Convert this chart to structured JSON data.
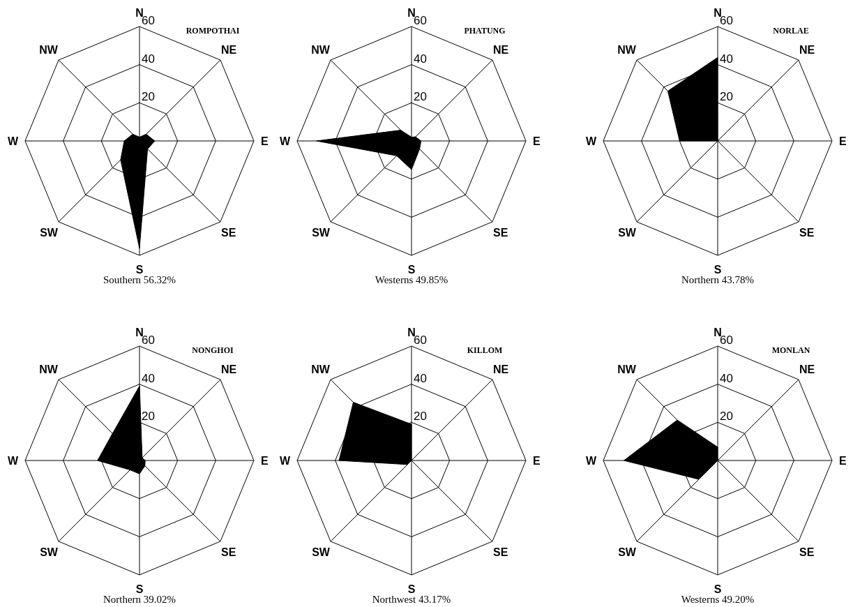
{
  "chart_data": [
    {
      "type": "radar",
      "title": "ROMPOTHAI",
      "xlabel": "Southern 56.32%",
      "categories": [
        "N",
        "NE",
        "E",
        "SE",
        "S",
        "SW",
        "W",
        "NW"
      ],
      "ylim": [
        0,
        60
      ],
      "yticks": [
        20,
        40,
        60
      ],
      "series": [
        {
          "color": "#000000",
          "values": [
            2,
            5,
            8,
            6,
            56.32,
            14,
            8,
            5
          ]
        }
      ]
    },
    {
      "type": "radar",
      "title": "PHATUNG",
      "xlabel": "Westerns 49.85%",
      "categories": [
        "N",
        "NE",
        "E",
        "SE",
        "S",
        "SW",
        "W",
        "NW"
      ],
      "ylim": [
        0,
        60
      ],
      "yticks": [
        20,
        40,
        60
      ],
      "series": [
        {
          "color": "#000000",
          "values": [
            2,
            3,
            5,
            6,
            15,
            11,
            49.85,
            8
          ]
        }
      ]
    },
    {
      "type": "radar",
      "title": "NORLAE",
      "xlabel": "Northern 43.78%",
      "categories": [
        "N",
        "NE",
        "E",
        "SE",
        "S",
        "SW",
        "W",
        "NW"
      ],
      "ylim": [
        0,
        60
      ],
      "yticks": [
        20,
        40,
        60
      ],
      "series": [
        {
          "color": "#000000",
          "values": [
            43.78,
            0,
            0,
            0,
            0,
            0,
            20,
            37
          ]
        }
      ]
    },
    {
      "type": "radar",
      "title": "NONGHOI",
      "xlabel": "Northern 39.02%",
      "categories": [
        "N",
        "NE",
        "E",
        "SE",
        "S",
        "SW",
        "W",
        "NW"
      ],
      "ylim": [
        0,
        60
      ],
      "yticks": [
        20,
        40,
        60
      ],
      "series": [
        {
          "color": "#000000",
          "values": [
            39.02,
            2,
            3,
            4,
            7,
            7,
            22,
            20
          ]
        }
      ]
    },
    {
      "type": "radar",
      "title": "KILLOM",
      "xlabel": "Northwest 43.17%",
      "categories": [
        "N",
        "NE",
        "E",
        "SE",
        "S",
        "SW",
        "W",
        "NW"
      ],
      "ylim": [
        0,
        60
      ],
      "yticks": [
        20,
        40,
        60
      ],
      "series": [
        {
          "color": "#000000",
          "values": [
            19,
            0,
            0,
            0,
            0,
            3,
            38,
            43.17
          ]
        }
      ]
    },
    {
      "type": "radar",
      "title": "MONLAN",
      "xlabel": "Westerns 49.20%",
      "categories": [
        "N",
        "NE",
        "E",
        "SE",
        "S",
        "SW",
        "W",
        "NW"
      ],
      "ylim": [
        0,
        60
      ],
      "yticks": [
        20,
        40,
        60
      ],
      "series": [
        {
          "color": "#000000",
          "values": [
            7,
            0,
            0,
            0,
            0,
            14,
            49.2,
            30
          ]
        }
      ]
    }
  ]
}
